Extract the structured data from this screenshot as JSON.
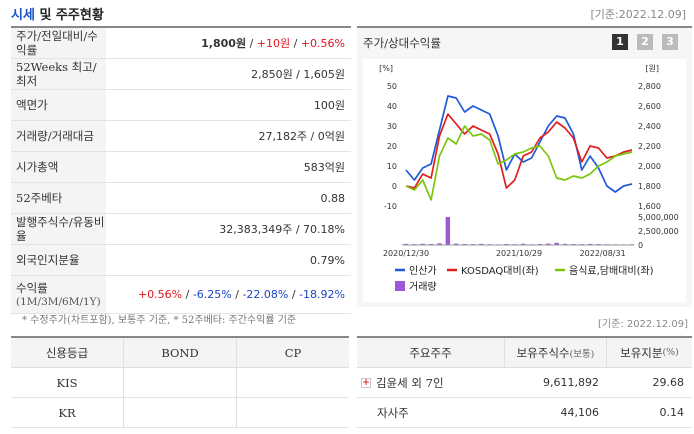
{
  "header": {
    "title_accent": "시세",
    "title_rest": " 및 주주현황",
    "base_date": "[기준:2022.12.09]"
  },
  "info": {
    "price": {
      "label": "주가/전일대비/수익률",
      "price": "1,800원",
      "sep1": " / ",
      "change": "+10원",
      "sep2": " / ",
      "rate": "+0.56%"
    },
    "w52": {
      "label": "52Weeks 최고/최저",
      "value": "2,850원 / 1,605원"
    },
    "par": {
      "label": "액면가",
      "value": "100원"
    },
    "volume": {
      "label": "거래량/거래대금",
      "value": "27,182주 / 0억원"
    },
    "mcap": {
      "label": "시가총액",
      "value": "583억원"
    },
    "beta": {
      "label": "52주베타",
      "value": "0.88"
    },
    "shares": {
      "label": "발행주식수/유동비율",
      "value": "32,383,349주 / 70.18%"
    },
    "foreign": {
      "label": "외국인지분율",
      "value": "0.79%"
    },
    "returns": {
      "label": "수익률",
      "sublabel": "(1M/3M/6M/1Y)",
      "r1m": "+0.56%",
      "r3m": "-6.25%",
      "r6m": "-22.08%",
      "r1y": "-18.92%",
      "sep": " / "
    }
  },
  "footnote": "* 수정주가(차트포함), 보통주 기준, * 52주베타: 주간수익률 기준",
  "chart_panel": {
    "title": "주가/상대수익률",
    "pages": [
      "1",
      "2",
      "3"
    ]
  },
  "chart_data": {
    "type": "line",
    "x_tick_labels": [
      "2020/12/30",
      "2021/10/29",
      "2022/08/31"
    ],
    "y_left_unit": "[%]",
    "y_right_unit": "[원]",
    "y_left_ticks": [
      "50",
      "40",
      "30",
      "20",
      "10",
      "0",
      "-10"
    ],
    "y_right_ticks": [
      "2,800",
      "2,600",
      "2,400",
      "2,200",
      "2,000",
      "1,800",
      "1,600"
    ],
    "volume_ticks": [
      "5,000,000",
      "2,500,000",
      "0"
    ],
    "ylim_left": [
      -10,
      50
    ],
    "ylim_right": [
      1600,
      2800
    ],
    "volume_ylim": [
      0,
      5000000
    ],
    "series": [
      {
        "name": "인산가",
        "axis": "left",
        "color": "#1f5bd8",
        "values": [
          8,
          3,
          9,
          11,
          28,
          45,
          44,
          37,
          40,
          38,
          36,
          25,
          8,
          16,
          12,
          14,
          22,
          30,
          35,
          34,
          26,
          8,
          15,
          9,
          0,
          -3,
          0,
          1
        ]
      },
      {
        "name": "KOSDAQ대비(좌)",
        "axis": "left",
        "color": "#e01e1e",
        "values": [
          0,
          -1,
          6,
          4,
          25,
          36,
          31,
          26,
          30,
          28,
          26,
          16,
          -1,
          3,
          15,
          17,
          24,
          27,
          32,
          29,
          24,
          12,
          20,
          19,
          14,
          15,
          17,
          18
        ]
      },
      {
        "name": "음식료,담배대비(좌)",
        "axis": "left",
        "color": "#7ac60b",
        "values": [
          0,
          -2,
          3,
          -7,
          15,
          24,
          21,
          30,
          25,
          26,
          23,
          11,
          13,
          16,
          17,
          19,
          20,
          15,
          4,
          3,
          5,
          4,
          6,
          10,
          12,
          15,
          16,
          17
        ]
      },
      {
        "name": "거래량",
        "axis": "volume",
        "color": "#9b59d6",
        "values": [
          200000,
          150000,
          220000,
          180000,
          300000,
          5000000,
          250000,
          180000,
          160000,
          200000,
          140000,
          120000,
          180000,
          150000,
          220000,
          130000,
          190000,
          250000,
          380000,
          210000,
          170000,
          150000,
          190000,
          160000,
          140000,
          120000,
          110000,
          130000
        ]
      }
    ]
  },
  "base_date_2": "[기준: 2022.12.09]",
  "credit": {
    "headers": [
      "신용등급",
      "BOND",
      "CP"
    ],
    "rows": [
      [
        "KIS",
        "",
        ""
      ],
      [
        "KR",
        "",
        ""
      ]
    ]
  },
  "holders": {
    "header_holder": "주요주주",
    "header_shares": "보유주식수",
    "header_shares_sub": "(보통)",
    "header_pct": "보유지분",
    "header_pct_sub": "(%)",
    "rows": [
      {
        "name": "김윤세 외 7인",
        "shares": "9,611,892",
        "pct": "29.68",
        "expandable": true
      },
      {
        "name": "자사주",
        "shares": "44,106",
        "pct": "0.14",
        "expandable": false
      }
    ]
  }
}
